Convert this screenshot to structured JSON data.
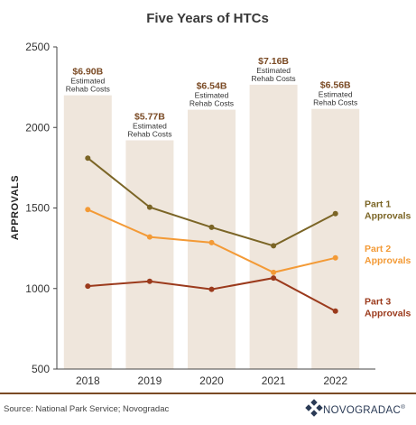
{
  "chart_data": {
    "type": "bar+line",
    "title": "Five Years of HTCs",
    "ylabel": "APPROVALS",
    "xlabel": "",
    "ylim": [
      500,
      2500
    ],
    "yticks": [
      500,
      1000,
      1500,
      2000,
      2500
    ],
    "categories": [
      "2018",
      "2019",
      "2020",
      "2021",
      "2022"
    ],
    "bars": {
      "values": [
        2200,
        1920,
        2110,
        2265,
        2115
      ],
      "color": "#efe6dc",
      "labels": [
        {
          "value": "$6.90B",
          "line1": "Estimated",
          "line2": "Rehab Costs"
        },
        {
          "value": "$5.77B",
          "line1": "Estimated",
          "line2": "Rehab Costs"
        },
        {
          "value": "$6.54B",
          "line1": "Estimated",
          "line2": "Rehab Costs"
        },
        {
          "value": "$7.16B",
          "line1": "Estimated",
          "line2": "Rehab Costs"
        },
        {
          "value": "$6.56B",
          "line1": "Estimated",
          "line2": "Rehab Costs"
        }
      ]
    },
    "series": [
      {
        "name": "Part 1 Approvals",
        "line1": "Part 1",
        "line2": "Approvals",
        "color": "#7b6526",
        "values": [
          1810,
          1505,
          1380,
          1265,
          1465
        ]
      },
      {
        "name": "Part 2 Approvals",
        "line1": "Part 2",
        "line2": "Approvals",
        "color": "#f39a36",
        "values": [
          1490,
          1320,
          1285,
          1100,
          1190
        ]
      },
      {
        "name": "Part 3 Approvals",
        "line1": "Part 3",
        "line2": "Approvals",
        "color": "#9b3a1c",
        "values": [
          1015,
          1045,
          995,
          1065,
          860
        ]
      }
    ],
    "grid": false
  },
  "footer": {
    "source": "Source: National Park Service; Novogradac",
    "brand": "NOVOGRADAC",
    "brand_mark": "®"
  },
  "colors": {
    "divider": "#7a4a24",
    "axis": "#444444",
    "brand_icon": "#2a3a55"
  }
}
